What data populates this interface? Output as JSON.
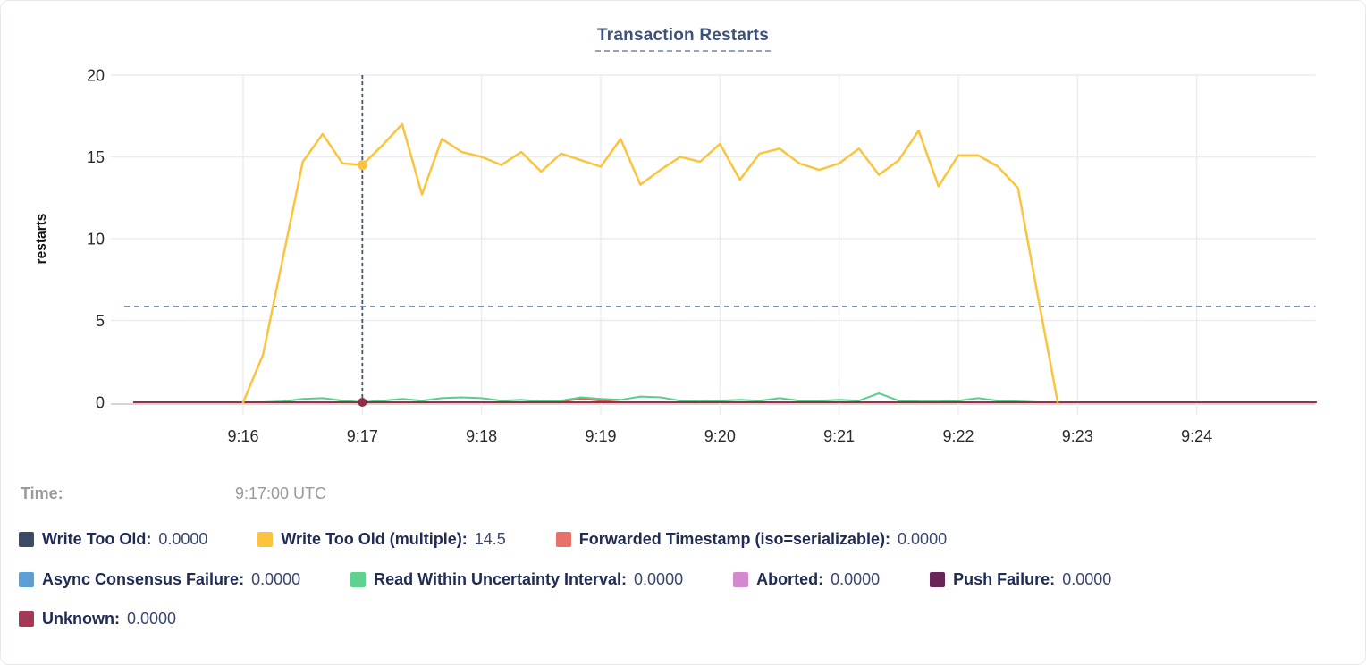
{
  "card": {
    "title": "Transaction Restarts"
  },
  "tooltip": {
    "label": "Time:",
    "value": "9:17:00 UTC"
  },
  "axes": {
    "y_label": "restarts",
    "y_ticks": [
      0,
      5,
      10,
      15,
      20
    ],
    "x_ticks": [
      {
        "label": "9:16",
        "t_sec": 60
      },
      {
        "label": "9:17",
        "t_sec": 120
      },
      {
        "label": "9:18",
        "t_sec": 180
      },
      {
        "label": "9:19",
        "t_sec": 240
      },
      {
        "label": "9:20",
        "t_sec": 300
      },
      {
        "label": "9:21",
        "t_sec": 360
      },
      {
        "label": "9:22",
        "t_sec": 420
      },
      {
        "label": "9:23",
        "t_sec": 480
      },
      {
        "label": "9:24",
        "t_sec": 540
      }
    ]
  },
  "legend": {
    "rows": [
      [
        {
          "id": "write-too-old",
          "label": "Write Too Old:",
          "value": "0.0000",
          "color": "#3d4b66"
        },
        {
          "id": "write-too-old-multiple",
          "label": "Write Too Old (multiple):",
          "value": "14.5",
          "color": "#fcc43e"
        },
        {
          "id": "forwarded-timestamp",
          "label": "Forwarded Timestamp (iso=serializable):",
          "value": "0.0000",
          "color": "#e8716a"
        }
      ],
      [
        {
          "id": "async-consensus-failure",
          "label": "Async Consensus Failure:",
          "value": "0.0000",
          "color": "#5d9fd4"
        },
        {
          "id": "read-within-uncertainty-interval",
          "label": "Read Within Uncertainty Interval:",
          "value": "0.0000",
          "color": "#5fd292"
        },
        {
          "id": "aborted",
          "label": "Aborted:",
          "value": "0.0000",
          "color": "#d489ce"
        },
        {
          "id": "push-failure",
          "label": "Push Failure:",
          "value": "0.0000",
          "color": "#692458"
        }
      ],
      [
        {
          "id": "unknown",
          "label": "Unknown:",
          "value": "0.0000",
          "color": "#a23a55"
        }
      ]
    ]
  },
  "chart_data": {
    "type": "line",
    "title": "Transaction Restarts",
    "ylabel": "restarts",
    "ylim": [
      0,
      20
    ],
    "grid": true,
    "x_axis_start": "9:15:05 UTC",
    "x_axis_end": "9:25:00 UTC",
    "time_step_seconds": 10,
    "threshold_line": {
      "value": 5.85,
      "style": "dashed"
    },
    "crosshair": {
      "t_sec": 120,
      "time_label": "9:17:00 UTC",
      "dots": [
        {
          "series": "Write Too Old (multiple)",
          "value": 14.5,
          "color": "#fcc43e",
          "r": 5.5
        },
        {
          "series": "Unknown",
          "value": 0,
          "color": "#8c2e4a",
          "r": 5
        }
      ]
    },
    "series": [
      {
        "id": "write-too-old",
        "name": "Write Too Old",
        "color": "#3d4b66",
        "width": 1.8,
        "points": [
          [
            5,
            0
          ],
          [
            600,
            0
          ]
        ]
      },
      {
        "id": "async-consensus-failure",
        "name": "Async Consensus Failure",
        "color": "#5d9fd4",
        "width": 1.8,
        "points": [
          [
            5,
            0
          ],
          [
            600,
            0
          ]
        ]
      },
      {
        "id": "aborted",
        "name": "Aborted",
        "color": "#d489ce",
        "width": 1.8,
        "points": [
          [
            5,
            0
          ],
          [
            600,
            0
          ]
        ]
      },
      {
        "id": "push-failure",
        "name": "Push Failure",
        "color": "#692458",
        "width": 1.8,
        "points": [
          [
            5,
            0
          ],
          [
            600,
            0
          ]
        ]
      },
      {
        "id": "forwarded-timestamp",
        "name": "Forwarded Timestamp (iso=serializable)",
        "color": "#e25c55",
        "width": 2,
        "points": [
          [
            5,
            0
          ],
          [
            210,
            0
          ],
          [
            220,
            0.05
          ],
          [
            230,
            0.22
          ],
          [
            240,
            0.1
          ],
          [
            250,
            0
          ],
          [
            600,
            0
          ]
        ]
      },
      {
        "id": "read-within-uncertainty-interval",
        "name": "Read Within Uncertainty Interval",
        "color": "#57cf8a",
        "width": 2,
        "t_start": 60,
        "t_step": 10,
        "values": [
          0,
          0,
          0.05,
          0.2,
          0.25,
          0.1,
          0,
          0.1,
          0.2,
          0.1,
          0.25,
          0.3,
          0.25,
          0.1,
          0.15,
          0.05,
          0.1,
          0.3,
          0.2,
          0.15,
          0.35,
          0.3,
          0.1,
          0.05,
          0.1,
          0.15,
          0.1,
          0.25,
          0.1,
          0.1,
          0.15,
          0.1,
          0.55,
          0.1,
          0.05,
          0.05,
          0.1,
          0.25,
          0.1,
          0.05,
          0,
          0
        ]
      },
      {
        "id": "unknown",
        "name": "Unknown",
        "color": "#94324a",
        "width": 2,
        "points": [
          [
            5,
            0
          ],
          [
            600,
            0
          ]
        ]
      },
      {
        "id": "write-too-old-multiple",
        "name": "Write Too Old (multiple)",
        "color": "#fcc43e",
        "width": 2.5,
        "t_start": 60,
        "t_step": 10,
        "values": [
          0,
          2.9,
          8.8,
          14.7,
          16.4,
          14.6,
          14.5,
          15.7,
          17.0,
          12.7,
          16.1,
          15.3,
          15.0,
          14.5,
          15.3,
          14.1,
          15.2,
          14.8,
          14.4,
          16.1,
          13.3,
          14.2,
          15.0,
          14.7,
          15.8,
          13.6,
          15.2,
          15.5,
          14.6,
          14.2,
          14.6,
          15.5,
          13.9,
          14.8,
          16.6,
          13.2,
          15.1,
          15.1,
          14.4,
          13.1,
          6.5,
          0
        ]
      }
    ]
  }
}
